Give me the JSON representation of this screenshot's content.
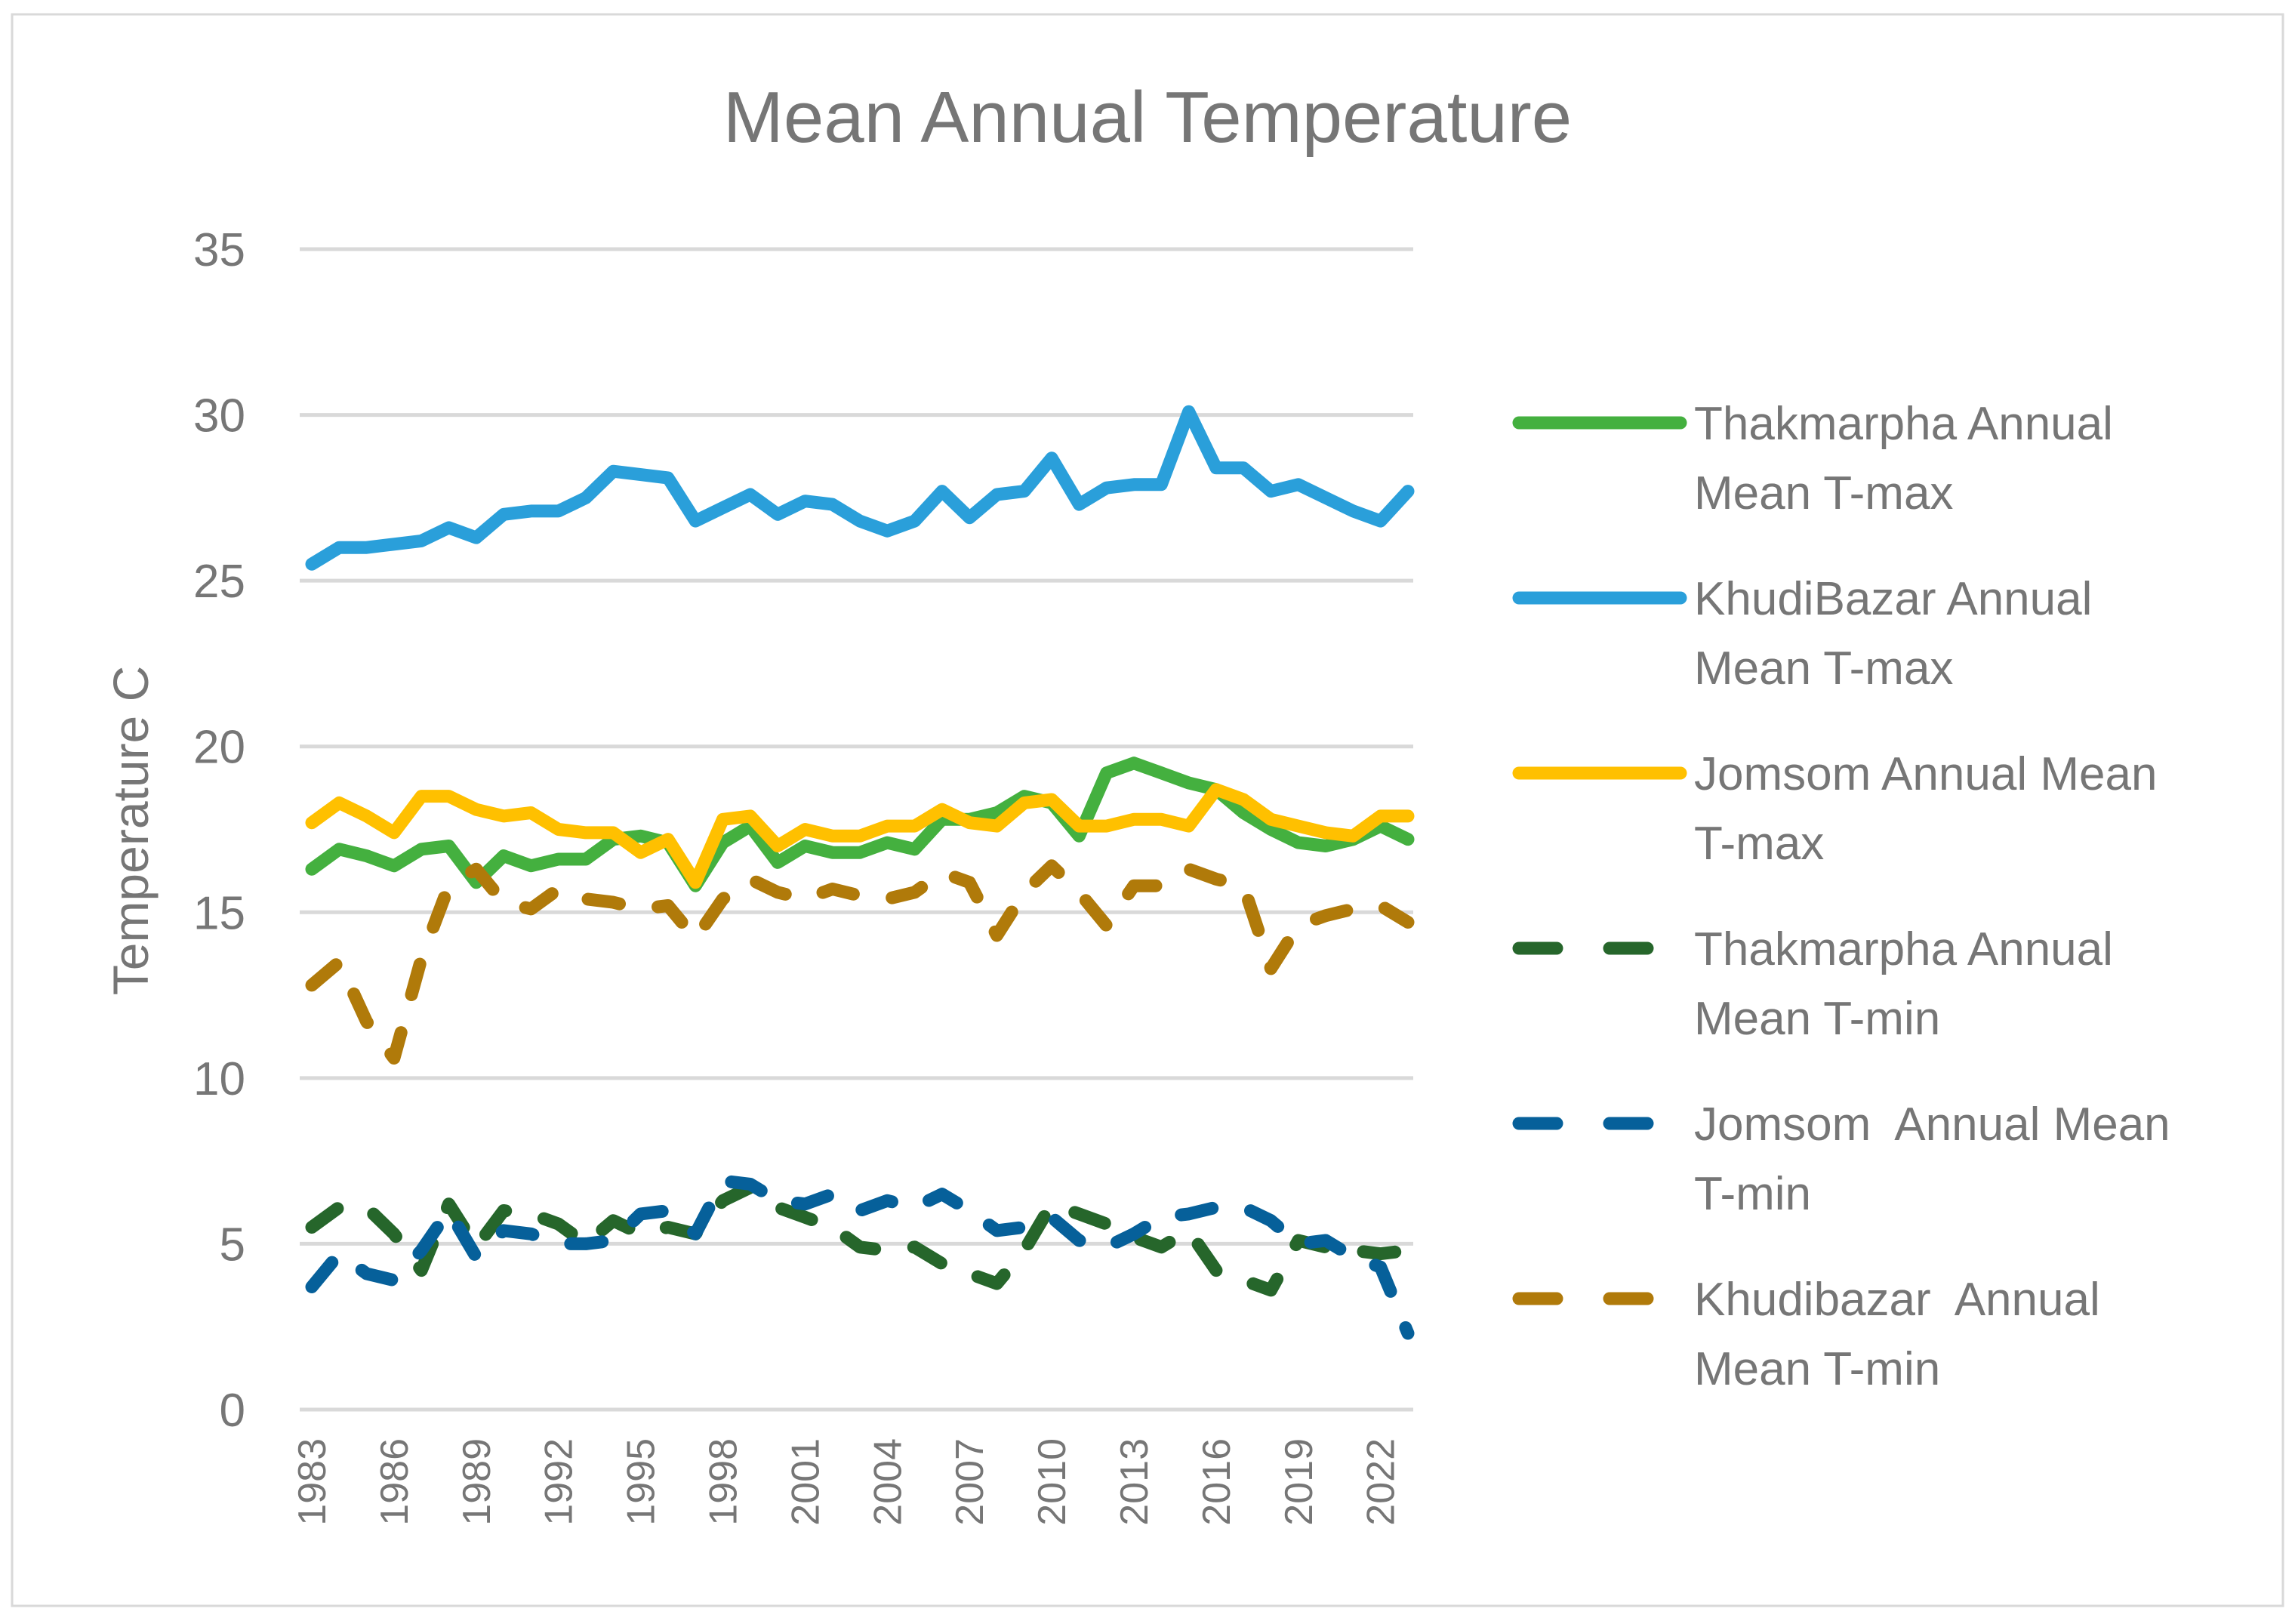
{
  "chart_data": {
    "type": "line",
    "title": "Mean Annual Temperature",
    "xlabel": "",
    "ylabel": "Temperature C",
    "ylim": [
      0,
      35
    ],
    "yticks": [
      0,
      5,
      10,
      15,
      20,
      25,
      30,
      35
    ],
    "grid": true,
    "legend_position": "right",
    "x": [
      1983,
      1984,
      1985,
      1986,
      1987,
      1988,
      1989,
      1990,
      1991,
      1992,
      1993,
      1994,
      1995,
      1996,
      1997,
      1998,
      1999,
      2000,
      2001,
      2002,
      2003,
      2004,
      2005,
      2006,
      2007,
      2008,
      2009,
      2010,
      2011,
      2012,
      2013,
      2014,
      2015,
      2016,
      2017,
      2018,
      2019,
      2020,
      2021,
      2022,
      2023
    ],
    "xtick_labels": [
      "1983",
      "1986",
      "1989",
      "1992",
      "1995",
      "1998",
      "2001",
      "2004",
      "2007",
      "2010",
      "2013",
      "2016",
      "2019",
      "2022"
    ],
    "series": [
      {
        "name": "Thakmarpha Annual Mean T-max",
        "color": "#44B03F",
        "dashed": false,
        "values": [
          16.3,
          16.9,
          16.7,
          16.4,
          16.9,
          17.0,
          15.9,
          16.7,
          16.4,
          16.6,
          16.6,
          17.2,
          17.3,
          17.1,
          15.8,
          17.1,
          17.6,
          16.5,
          17.0,
          16.8,
          16.8,
          17.1,
          16.9,
          17.8,
          17.8,
          18.0,
          18.5,
          18.3,
          17.3,
          19.2,
          19.5,
          19.2,
          18.9,
          18.7,
          18.0,
          17.5,
          17.1,
          17.0,
          17.2,
          17.6,
          17.2
        ]
      },
      {
        "name": "KhudiBazar Annual Mean T-max",
        "color": "#2A9FDA",
        "dashed": false,
        "values": [
          25.5,
          26.0,
          26.0,
          26.1,
          26.2,
          26.6,
          26.3,
          27.0,
          27.1,
          27.1,
          27.5,
          28.3,
          28.2,
          28.1,
          26.8,
          27.2,
          27.6,
          27.0,
          27.4,
          27.3,
          26.8,
          26.5,
          26.8,
          27.7,
          26.9,
          27.6,
          27.7,
          28.7,
          27.3,
          27.8,
          27.9,
          27.9,
          30.1,
          28.4,
          28.4,
          27.7,
          27.9,
          27.5,
          27.1,
          26.8,
          27.7
        ]
      },
      {
        "name": "Jomsom Annual Mean T-max",
        "color": "#FFC000",
        "dashed": false,
        "values": [
          17.7,
          18.3,
          17.9,
          17.4,
          18.5,
          18.5,
          18.1,
          17.9,
          18.0,
          17.5,
          17.4,
          17.4,
          16.8,
          17.2,
          15.9,
          17.8,
          17.9,
          17.0,
          17.5,
          17.3,
          17.3,
          17.6,
          17.6,
          18.1,
          17.7,
          17.6,
          18.3,
          18.4,
          17.6,
          17.6,
          17.8,
          17.8,
          17.6,
          18.7,
          18.4,
          17.8,
          17.6,
          17.4,
          17.3,
          17.9,
          17.9
        ]
      },
      {
        "name": "Thakmarpha Annual Mean T-min",
        "color": "#26662B",
        "dashed": true,
        "values": [
          5.5,
          6.1,
          6.1,
          5.3,
          4.2,
          6.2,
          4.9,
          6.0,
          5.9,
          5.6,
          5.0,
          5.7,
          5.3,
          5.5,
          5.3,
          6.3,
          6.7,
          6.1,
          5.8,
          5.5,
          4.9,
          4.8,
          4.9,
          4.4,
          4.1,
          3.8,
          4.8,
          6.2,
          5.9,
          5.6,
          5.2,
          4.9,
          5.4,
          4.2,
          3.9,
          3.6,
          5.1,
          4.9,
          4.8,
          4.7,
          4.8
        ]
      },
      {
        "name": "Jomsom  Annual Mean T-min",
        "color": "#06609A",
        "dashed": true,
        "values": [
          3.7,
          4.7,
          4.1,
          3.9,
          4.8,
          6.0,
          4.6,
          5.4,
          5.3,
          5.0,
          5.0,
          5.1,
          5.9,
          6.0,
          5.3,
          6.9,
          6.8,
          6.3,
          6.2,
          6.5,
          6.0,
          6.3,
          6.1,
          6.5,
          6.0,
          5.4,
          5.5,
          5.8,
          5.1,
          4.9,
          5.3,
          5.8,
          5.9,
          6.1,
          6.1,
          5.7,
          5.0,
          5.1,
          4.6,
          4.3,
          2.3
        ]
      },
      {
        "name": "Khudibazar  Annual Mean T-min",
        "color": "#B07A0A",
        "dashed": true,
        "values": [
          12.8,
          13.5,
          11.7,
          10.6,
          13.6,
          15.8,
          16.3,
          15.3,
          15.1,
          15.7,
          15.4,
          15.3,
          15.1,
          15.2,
          14.2,
          15.4,
          16.0,
          15.6,
          15.4,
          15.7,
          15.5,
          15.4,
          15.6,
          16.2,
          15.9,
          14.3,
          15.6,
          16.4,
          15.6,
          14.6,
          15.8,
          15.8,
          16.3,
          16.0,
          15.8,
          13.3,
          14.6,
          14.9,
          15.1,
          15.2,
          14.7
        ]
      }
    ]
  }
}
